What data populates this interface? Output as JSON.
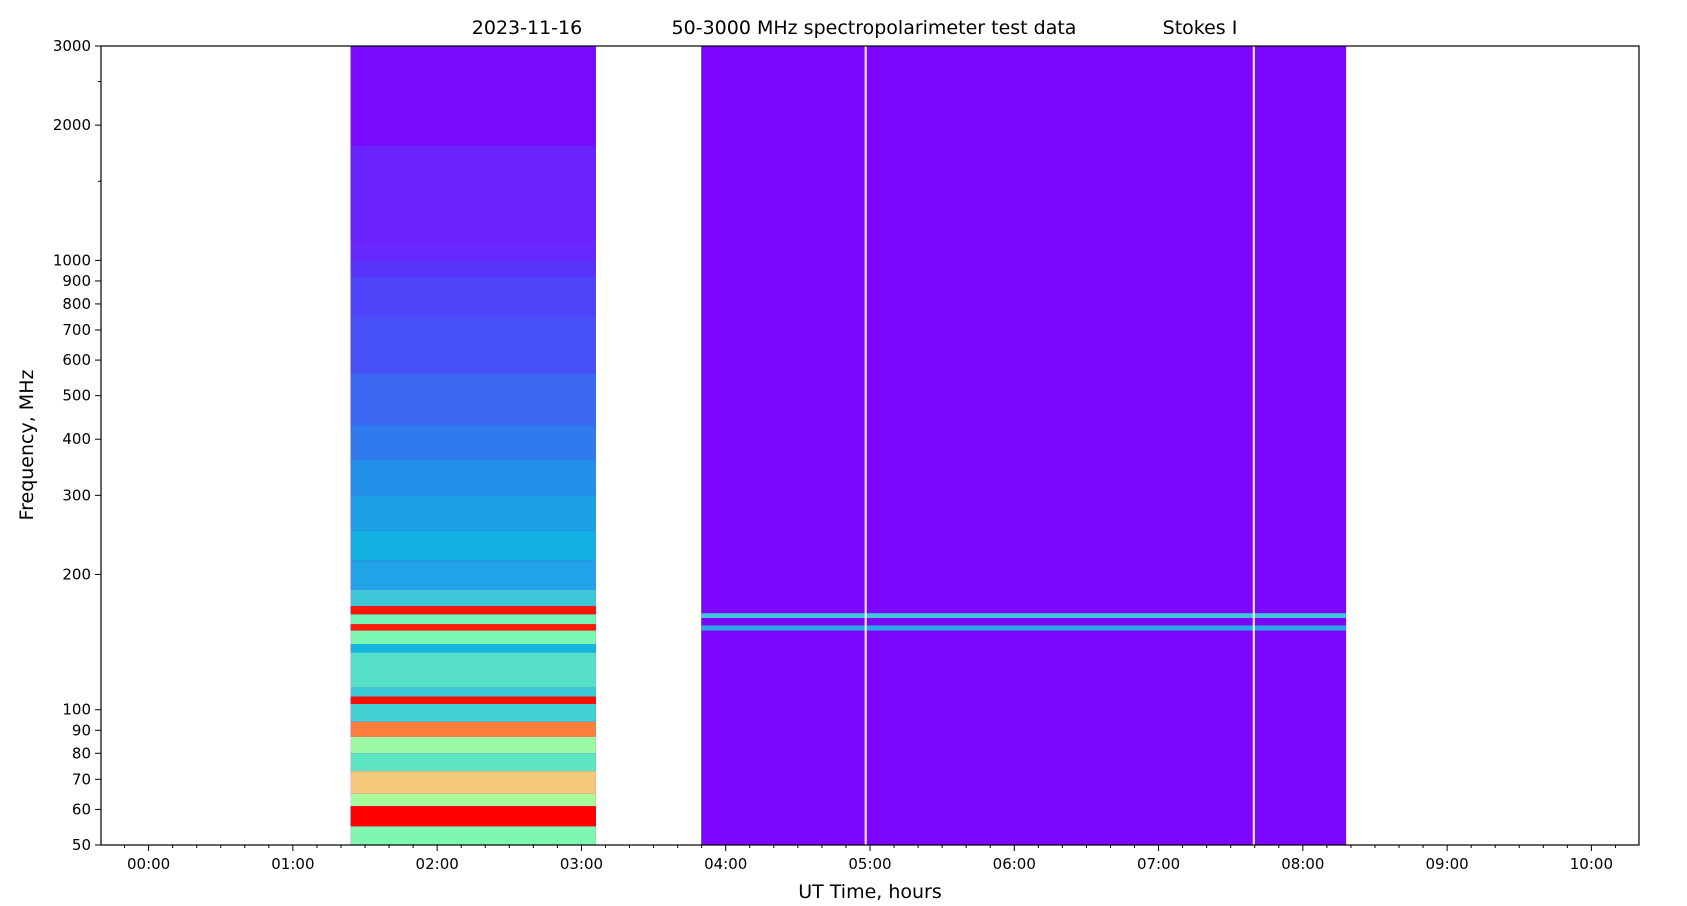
{
  "chart_data": {
    "type": "heatmap",
    "title": {
      "date": "2023-11-16",
      "main": "50-3000 MHz spectropolarimeter test data",
      "stokes": "Stokes I"
    },
    "xlabel": "UT Time, hours",
    "ylabel": "Frequency, MHz",
    "x_unit": "hours UT",
    "xlim": [
      -0.33,
      10.33
    ],
    "ylim": [
      50,
      3000
    ],
    "y_scale": "log",
    "colormap": "rainbow",
    "x_ticks": [
      {
        "value": 0,
        "label": "00:00"
      },
      {
        "value": 1,
        "label": "01:00"
      },
      {
        "value": 2,
        "label": "02:00"
      },
      {
        "value": 3,
        "label": "03:00"
      },
      {
        "value": 4,
        "label": "04:00"
      },
      {
        "value": 5,
        "label": "05:00"
      },
      {
        "value": 6,
        "label": "06:00"
      },
      {
        "value": 7,
        "label": "07:00"
      },
      {
        "value": 8,
        "label": "08:00"
      },
      {
        "value": 9,
        "label": "09:00"
      },
      {
        "value": 10,
        "label": "10:00"
      }
    ],
    "y_ticks": [
      {
        "value": 50,
        "label": "50"
      },
      {
        "value": 60,
        "label": "60"
      },
      {
        "value": 70,
        "label": "70"
      },
      {
        "value": 80,
        "label": "80"
      },
      {
        "value": 90,
        "label": "90"
      },
      {
        "value": 100,
        "label": "100"
      },
      {
        "value": 200,
        "label": "200"
      },
      {
        "value": 300,
        "label": "300"
      },
      {
        "value": 400,
        "label": "400"
      },
      {
        "value": 500,
        "label": "500"
      },
      {
        "value": 600,
        "label": "600"
      },
      {
        "value": 700,
        "label": "700"
      },
      {
        "value": 800,
        "label": "800"
      },
      {
        "value": 900,
        "label": "900"
      },
      {
        "value": 1000,
        "label": "1000"
      },
      {
        "value": 2000,
        "label": "2000"
      },
      {
        "value": 3000,
        "label": "3000"
      }
    ],
    "segments": [
      {
        "t_start": 1.4,
        "t_end": 3.1,
        "background_color": "#7f00ff",
        "bands": [
          {
            "f_low": 1800,
            "f_high": 3000,
            "color": "#7a0bff"
          },
          {
            "f_low": 1100,
            "f_high": 1800,
            "color": "#6a22fd"
          },
          {
            "f_low": 920,
            "f_high": 1000,
            "color": "#5a33fa"
          },
          {
            "f_low": 1000,
            "f_high": 1100,
            "color": "#6628fc"
          },
          {
            "f_low": 750,
            "f_high": 920,
            "color": "#4f44f7"
          },
          {
            "f_low": 690,
            "f_high": 710,
            "color": "#2d80ee"
          },
          {
            "f_low": 560,
            "f_high": 750,
            "color": "#4650f6"
          },
          {
            "f_low": 430,
            "f_high": 560,
            "color": "#3a68f2"
          },
          {
            "f_low": 360,
            "f_high": 430,
            "color": "#2f7bee"
          },
          {
            "f_low": 300,
            "f_high": 360,
            "color": "#2391e9"
          },
          {
            "f_low": 250,
            "f_high": 300,
            "color": "#1da0e6"
          },
          {
            "f_low": 215,
            "f_high": 250,
            "color": "#15b0e2"
          },
          {
            "f_low": 185,
            "f_high": 215,
            "color": "#22a3e7"
          },
          {
            "f_low": 170,
            "f_high": 185,
            "color": "#3fc6d8"
          },
          {
            "f_low": 163,
            "f_high": 170,
            "color": "#ff1500"
          },
          {
            "f_low": 155,
            "f_high": 163,
            "color": "#74f5b8"
          },
          {
            "f_low": 150,
            "f_high": 155,
            "color": "#ff1a00"
          },
          {
            "f_low": 140,
            "f_high": 150,
            "color": "#7cf8b2"
          },
          {
            "f_low": 134,
            "f_high": 140,
            "color": "#12b8e0"
          },
          {
            "f_low": 112,
            "f_high": 134,
            "color": "#56e0c8"
          },
          {
            "f_low": 103,
            "f_high": 107,
            "color": "#ff0d00"
          },
          {
            "f_low": 107,
            "f_high": 112,
            "color": "#3cc9d7"
          },
          {
            "f_low": 94,
            "f_high": 103,
            "color": "#44d1d3"
          },
          {
            "f_low": 87,
            "f_high": 94,
            "color": "#ff7f3f"
          },
          {
            "f_low": 80,
            "f_high": 87,
            "color": "#9cf9a3"
          },
          {
            "f_low": 73,
            "f_high": 80,
            "color": "#5ee6c3"
          },
          {
            "f_low": 65,
            "f_high": 73,
            "color": "#f5c97a"
          },
          {
            "f_low": 61,
            "f_high": 65,
            "color": "#a7fb9a"
          },
          {
            "f_low": 55,
            "f_high": 61,
            "color": "#ff0000"
          },
          {
            "f_low": 50,
            "f_high": 55,
            "color": "#7ff7b0"
          }
        ]
      },
      {
        "t_start": 3.83,
        "t_end": 8.3,
        "background_color": "#7c05ff",
        "bands": [
          {
            "f_low": 160,
            "f_high": 164,
            "color": "#3fc6d8"
          },
          {
            "f_low": 150,
            "f_high": 154,
            "color": "#2aa6e6"
          }
        ]
      }
    ],
    "gaps": [
      4.97,
      7.66
    ],
    "annotations": []
  }
}
